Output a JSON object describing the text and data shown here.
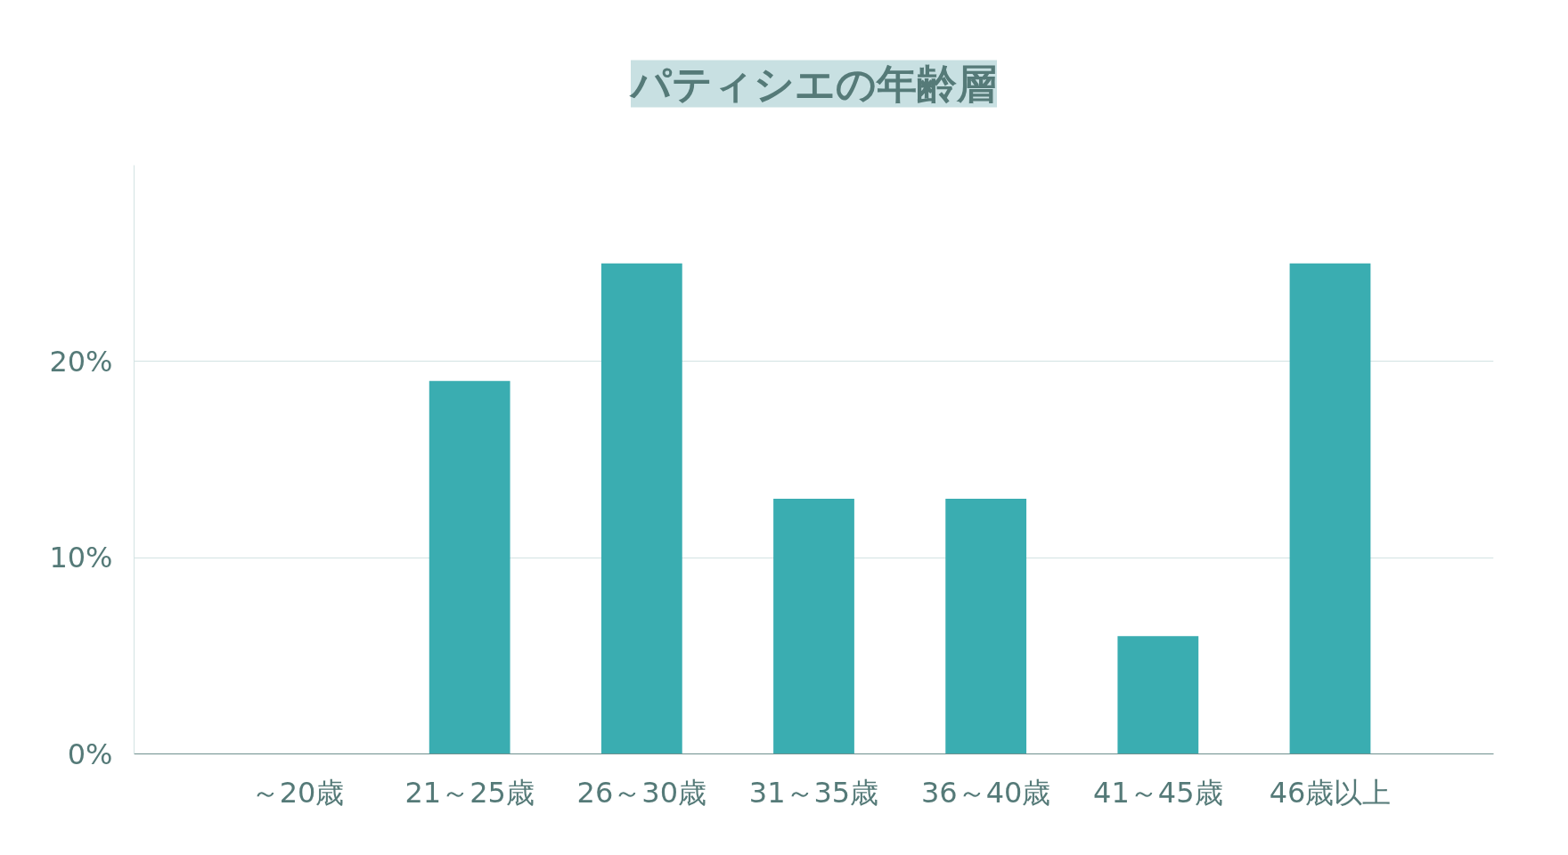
{
  "chart_data": {
    "type": "bar",
    "title": "パティシエの年齢層",
    "categories": [
      "～20歳",
      "21～25歳",
      "26～30歳",
      "31～35歳",
      "36～40歳",
      "41～45歳",
      "46歳以上"
    ],
    "values": [
      0,
      19,
      25,
      13,
      13,
      6,
      25
    ],
    "color": "#3aadb1",
    "ylim": [
      0,
      30
    ],
    "yticks": [
      {
        "value": 0,
        "label": "0%"
      },
      {
        "value": 10,
        "label": "10%"
      },
      {
        "value": 20,
        "label": "20%"
      }
    ],
    "grid": "y"
  }
}
